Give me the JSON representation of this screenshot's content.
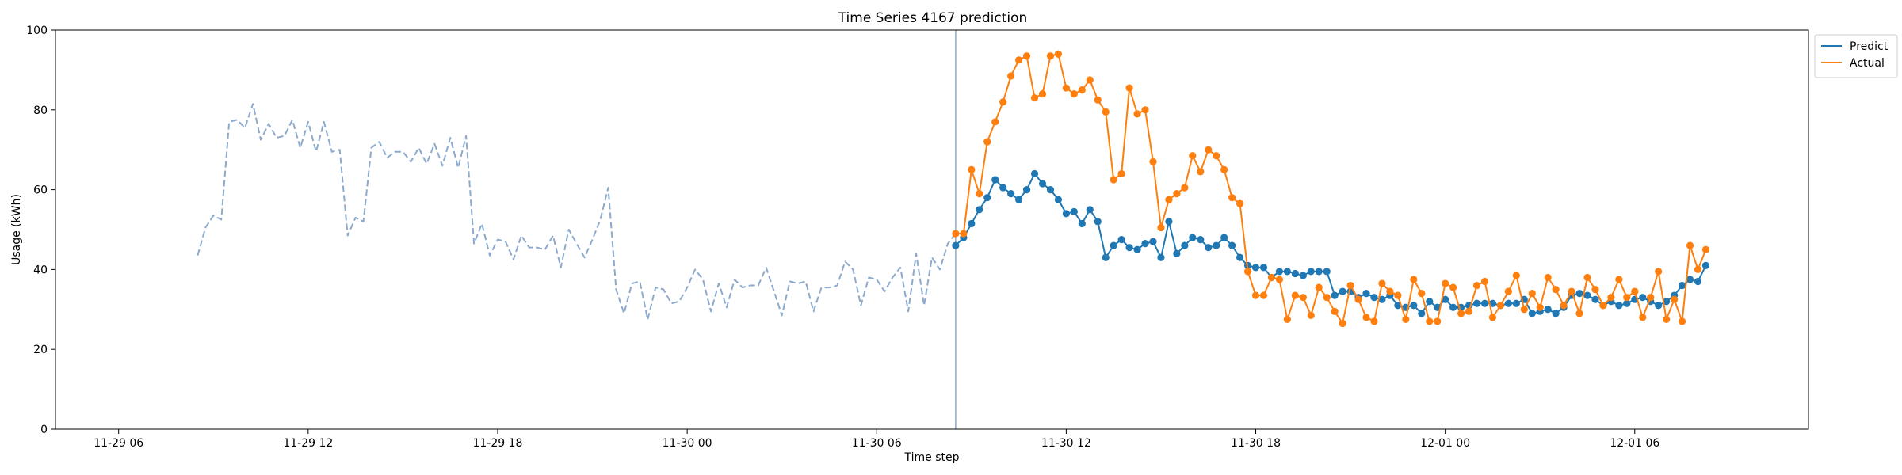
{
  "chart_data": {
    "type": "line",
    "title": "Time Series 4167 prediction",
    "xlabel": "Time step",
    "ylabel": "Usage (kWh)",
    "ylim": [
      0,
      100
    ],
    "yticks": [
      0,
      20,
      40,
      60,
      80,
      100
    ],
    "x_unit": "hours",
    "xlim": [
      -2,
      53.5
    ],
    "xticks": [
      {
        "x": 0,
        "label": "11-29 06"
      },
      {
        "x": 6,
        "label": "11-29 12"
      },
      {
        "x": 12,
        "label": "11-29 18"
      },
      {
        "x": 18,
        "label": "11-30 00"
      },
      {
        "x": 24,
        "label": "11-30 06"
      },
      {
        "x": 30,
        "label": "11-30 12"
      },
      {
        "x": 36,
        "label": "11-30 18"
      },
      {
        "x": 42,
        "label": "12-01 00"
      },
      {
        "x": 48,
        "label": "12-01 06"
      }
    ],
    "split_x": 26.5,
    "legend": {
      "position": "top-right"
    },
    "series": [
      {
        "name": "history",
        "style": "dashed",
        "color": "#8da9cc",
        "start_x": 2.5,
        "step": 0.25,
        "values": [
          43.5,
          50.5,
          53.5,
          52.5,
          77,
          77.5,
          75.5,
          81.5,
          72.5,
          76.5,
          73,
          73.5,
          77.5,
          70.5,
          77,
          69.5,
          77,
          69.5,
          70,
          48.5,
          53,
          52,
          70.5,
          72,
          68,
          69.5,
          69.5,
          67,
          70.5,
          66.5,
          71.5,
          66,
          73,
          65.5,
          73.5,
          46.5,
          51.5,
          43.5,
          47.5,
          47,
          42.5,
          48.5,
          45.5,
          45.5,
          45,
          48.5,
          40.5,
          50,
          46.5,
          43,
          47.5,
          52.5,
          60.5,
          35,
          29,
          36.5,
          37,
          27.5,
          35.5,
          35,
          31.5,
          32,
          35.5,
          40,
          37.5,
          29.5,
          36.5,
          30.5,
          37.5,
          35.5,
          36,
          36,
          40.5,
          34.5,
          28.5,
          37,
          36.5,
          37,
          29.5,
          35.5,
          35.5,
          36,
          42,
          40,
          31,
          38,
          37.5,
          34.5,
          38,
          40.5,
          29.5,
          44,
          31,
          43,
          40,
          46.5,
          49
        ]
      },
      {
        "name": "Predict",
        "color": "#1f77b4",
        "start_x": 26.5,
        "step": 0.25,
        "values": [
          46,
          48,
          51.5,
          55,
          58,
          62.5,
          60.5,
          59,
          57.5,
          60,
          64,
          61.5,
          60,
          57.5,
          54,
          54.5,
          51.5,
          55,
          52,
          43,
          46,
          47.5,
          45.5,
          45,
          46.5,
          47,
          43,
          52,
          44,
          46,
          48,
          47.5,
          45.5,
          46,
          48,
          46,
          43,
          41,
          40.5,
          40.5,
          38,
          39.5,
          39.5,
          39,
          38.5,
          39.5,
          39.5,
          39.5,
          33.5,
          34.5,
          34.5,
          33,
          34,
          33,
          32.5,
          33.5,
          31,
          30.5,
          31,
          29,
          32,
          30.5,
          32.5,
          30.5,
          30.5,
          31,
          31.5,
          31.5,
          31.5,
          31,
          31.5,
          31.5,
          32.5,
          29,
          29.5,
          30,
          29,
          30.5,
          33.5,
          34,
          33.5,
          32.5,
          31,
          32,
          31,
          31.5,
          32.5,
          33,
          32,
          31,
          32,
          33.5,
          36,
          37.5,
          37,
          41
        ]
      },
      {
        "name": "Actual",
        "color": "#ff7f0e",
        "start_x": 26.5,
        "step": 0.25,
        "values": [
          49,
          49,
          65,
          59,
          72,
          77,
          82,
          88.5,
          92.5,
          93.5,
          83,
          84,
          93.5,
          94,
          85.5,
          84,
          85,
          87.5,
          82.5,
          79.5,
          62.5,
          64,
          85.5,
          79,
          80,
          67,
          50.5,
          57.5,
          59,
          60.5,
          68.5,
          64.5,
          70,
          68.5,
          65,
          58,
          56.5,
          39.5,
          33.5,
          33.5,
          38,
          37.5,
          27.5,
          33.5,
          33,
          28.5,
          35.5,
          33,
          29.5,
          26.5,
          36,
          32.5,
          28,
          27,
          36.5,
          34.5,
          33.5,
          27.5,
          37.5,
          34,
          27,
          27,
          36.5,
          35.5,
          29,
          29.5,
          36,
          37,
          28,
          31,
          34.5,
          38.5,
          30,
          34,
          30.5,
          38,
          35,
          31,
          34.5,
          29,
          38,
          35,
          31,
          33,
          37.5,
          33,
          34.5,
          28,
          33,
          39.5,
          27.5,
          32.5,
          27,
          46,
          40,
          45
        ]
      }
    ]
  }
}
